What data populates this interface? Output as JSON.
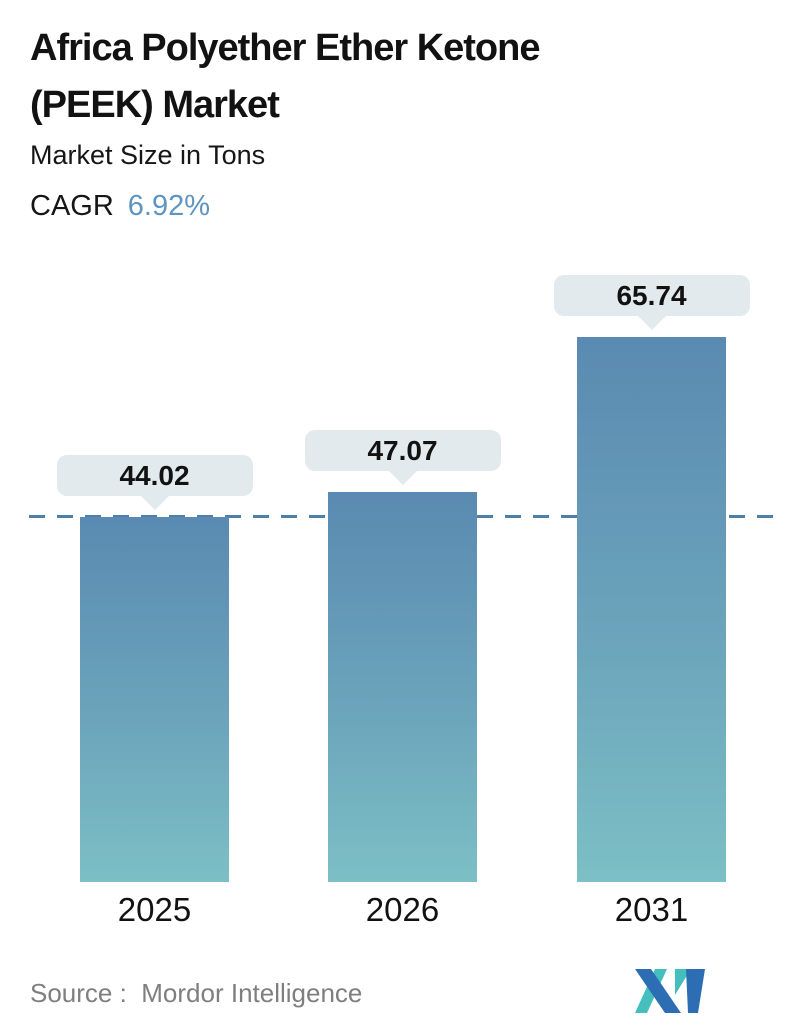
{
  "header": {
    "title": "Africa Polyether Ether Ketone (PEEK) Market",
    "subtitle": "Market Size in Tons",
    "cagr_label": "CAGR",
    "cagr_value": "6.92%"
  },
  "chart_data": {
    "type": "bar",
    "title": "Africa Polyether Ether Ketone (PEEK) Market",
    "subtitle": "Market Size in Tons",
    "cagr_label": "CAGR",
    "cagr_value": "6.92%",
    "categories": [
      "2025",
      "2026",
      "2031"
    ],
    "values": [
      44.02,
      47.07,
      65.74
    ],
    "data_labels": [
      "44.02",
      "47.07",
      "65.74"
    ],
    "unit": "Tons",
    "ylabel": "Market Size in Tons",
    "ylim": [
      0,
      70
    ],
    "grid": false,
    "legend": false,
    "marker": {
      "type": "dashed-line",
      "value": 44.02,
      "color": "#4d7fa9"
    },
    "colors": {
      "bar_gradient_top": "#5a8ab1",
      "bar_gradient_bottom": "#7cbfc5",
      "callout_background": "#e3eaee",
      "label_text": "#121212",
      "cagr_accent": "#5d95c0"
    }
  },
  "footer": {
    "source_label": "Source :  Mordor Intelligence",
    "logo": "mordor-intelligence-logo",
    "logo_colors": {
      "blue": "#2d6db4",
      "teal": "#45bfbd"
    }
  }
}
